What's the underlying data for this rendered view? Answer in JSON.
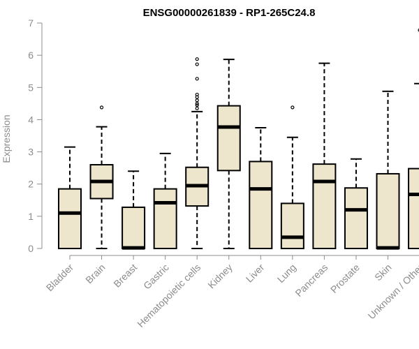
{
  "chart_data": {
    "type": "boxplot",
    "title": "ENSG00000261839 - RP1-265C24.8",
    "ylabel": "Expression",
    "xlabel": "",
    "ylim": [
      0,
      7
    ],
    "yticks": [
      0,
      1,
      2,
      3,
      4,
      5,
      6,
      7
    ],
    "grid": false,
    "box_fill": "#ede6cc",
    "box_stroke": "#000000",
    "axis_text_color": "#8c8c8c",
    "categories": [
      "Bladder",
      "Brain",
      "Breast",
      "Gastric",
      "Hematopoietic cells",
      "Kidney",
      "Liver",
      "Lung",
      "Pancreas",
      "Prostate",
      "Skin",
      "Unknown / Other"
    ],
    "boxes": [
      {
        "category": "Bladder",
        "whisker_low": 0,
        "q1": 0,
        "median": 1.1,
        "q3": 1.85,
        "whisker_high": 3.15,
        "outliers": []
      },
      {
        "category": "Brain",
        "whisker_low": 0,
        "q1": 1.55,
        "median": 2.08,
        "q3": 2.6,
        "whisker_high": 3.78,
        "outliers": [
          4.38
        ]
      },
      {
        "category": "Breast",
        "whisker_low": 0,
        "q1": 0,
        "median": 0.02,
        "q3": 1.28,
        "whisker_high": 2.4,
        "outliers": []
      },
      {
        "category": "Gastric",
        "whisker_low": 0,
        "q1": 0,
        "median": 1.42,
        "q3": 1.85,
        "whisker_high": 2.95,
        "outliers": []
      },
      {
        "category": "Hematopoietic cells",
        "whisker_low": 0,
        "q1": 1.32,
        "median": 1.95,
        "q3": 2.52,
        "whisker_high": 4.25,
        "outliers": [
          4.35,
          4.45,
          4.5,
          4.6,
          4.7,
          4.78,
          5.27,
          5.72,
          5.88
        ]
      },
      {
        "category": "Kidney",
        "whisker_low": 0,
        "q1": 2.42,
        "median": 3.77,
        "q3": 4.43,
        "whisker_high": 5.87,
        "outliers": []
      },
      {
        "category": "Liver",
        "whisker_low": 0,
        "q1": 0,
        "median": 1.85,
        "q3": 2.7,
        "whisker_high": 3.75,
        "outliers": []
      },
      {
        "category": "Lung",
        "whisker_low": 0,
        "q1": 0,
        "median": 0.35,
        "q3": 1.4,
        "whisker_high": 3.45,
        "outliers": [
          4.38
        ]
      },
      {
        "category": "Pancreas",
        "whisker_low": 0,
        "q1": 0,
        "median": 2.08,
        "q3": 2.62,
        "whisker_high": 5.75,
        "outliers": []
      },
      {
        "category": "Prostate",
        "whisker_low": 0,
        "q1": 0,
        "median": 1.2,
        "q3": 1.88,
        "whisker_high": 2.78,
        "outliers": []
      },
      {
        "category": "Skin",
        "whisker_low": 0,
        "q1": 0,
        "median": 0.02,
        "q3": 2.32,
        "whisker_high": 4.88,
        "outliers": []
      },
      {
        "category": "Unknown / Other",
        "whisker_low": 0,
        "q1": 0,
        "median": 1.68,
        "q3": 2.48,
        "whisker_high": 5.12,
        "outliers": [
          6.78
        ]
      }
    ]
  }
}
